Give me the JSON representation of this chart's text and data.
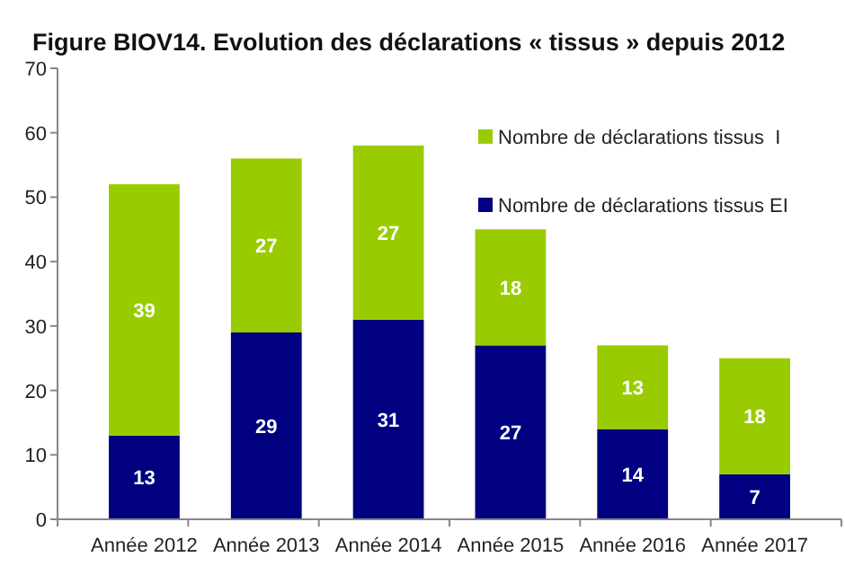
{
  "chart_data": {
    "type": "bar",
    "title": "Figure BIOV14. Evolution des déclarations « tissus » depuis 2012",
    "categories": [
      "Année 2012",
      "Année 2013",
      "Année 2014",
      "Année 2015",
      "Année 2016",
      "Année 2017"
    ],
    "stacked": true,
    "series": [
      {
        "name": "Nombre de déclarations tissus EI",
        "color": "#000080",
        "values": [
          13,
          29,
          31,
          27,
          14,
          7
        ]
      },
      {
        "name": "Nombre de déclarations tissus  I",
        "color": "#99cc00",
        "values": [
          39,
          27,
          27,
          18,
          13,
          18
        ]
      }
    ],
    "ylim": [
      0,
      70
    ],
    "yticks": [
      0,
      10,
      20,
      30,
      40,
      50,
      60,
      70
    ],
    "data_labels": true,
    "legend": "top right",
    "grid": false
  }
}
